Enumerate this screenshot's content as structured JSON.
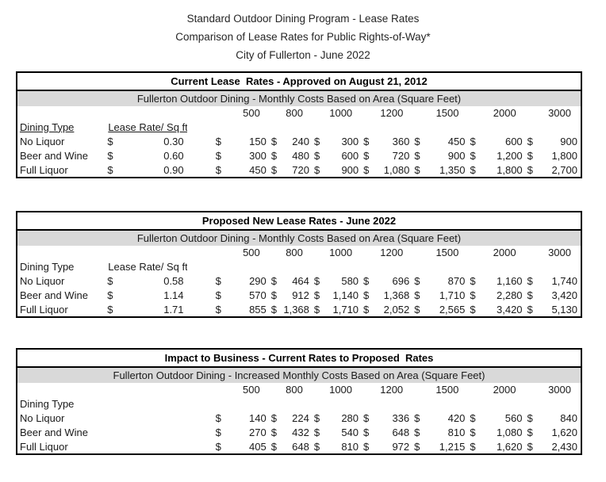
{
  "page_header": {
    "line1": "Standard Outdoor Dining Program - Lease Rates",
    "line2": "Comparison of Lease Rates for Public Rights-of-Way*",
    "line3": "City of Fullerton - June 2022"
  },
  "currency_symbol": "$",
  "columns": {
    "dining_type_label": "Dining Type",
    "rate_label": "Lease Rate/ Sq ft",
    "areas": [
      "500",
      "800",
      "1000",
      "1200",
      "1500",
      "2000",
      "3000"
    ]
  },
  "colors": {
    "subtitle_bg": "#d9d9d9",
    "border": "#000000",
    "text": "#1a1a1a"
  },
  "tables": [
    {
      "id": "current-rates",
      "title": "Current Lease  Rates - Approved on August 21, 2012",
      "subtitle": "Fullerton Outdoor Dining - Monthly Costs Based on Area (Square Feet)",
      "show_rate_column": true,
      "underline_headers": true,
      "rows": [
        {
          "label": "No Liquor",
          "rate": "0.30",
          "values": [
            "150",
            "240",
            "300",
            "360",
            "450",
            "600",
            "900"
          ]
        },
        {
          "label": "Beer and Wine",
          "rate": "0.60",
          "values": [
            "300",
            "480",
            "600",
            "720",
            "900",
            "1,200",
            "1,800"
          ]
        },
        {
          "label": "Full Liquor",
          "rate": "0.90",
          "values": [
            "450",
            "720",
            "900",
            "1,080",
            "1,350",
            "1,800",
            "2,700"
          ]
        }
      ]
    },
    {
      "id": "proposed-rates",
      "title": "Proposed New Lease Rates - June 2022",
      "subtitle": "Fullerton Outdoor Dining - Monthly Costs Based on Area (Square Feet)",
      "show_rate_column": true,
      "underline_headers": false,
      "rows": [
        {
          "label": "No Liquor",
          "rate": "0.58",
          "values": [
            "290",
            "464",
            "580",
            "696",
            "870",
            "1,160",
            "1,740"
          ]
        },
        {
          "label": "Beer and Wine",
          "rate": "1.14",
          "values": [
            "570",
            "912",
            "1,140",
            "1,368",
            "1,710",
            "2,280",
            "3,420"
          ]
        },
        {
          "label": "Full Liquor",
          "rate": "1.71",
          "values": [
            "855",
            "1,368",
            "1,710",
            "2,052",
            "2,565",
            "3,420",
            "5,130"
          ]
        }
      ]
    },
    {
      "id": "impact",
      "title": "Impact to Business - Current Rates to Proposed  Rates",
      "subtitle": "Fullerton Outdoor Dining - Increased Monthly Costs Based on Area (Square Feet)",
      "show_rate_column": false,
      "underline_headers": false,
      "rows": [
        {
          "label": "No Liquor",
          "rate": "",
          "values": [
            "140",
            "224",
            "280",
            "336",
            "420",
            "560",
            "840"
          ]
        },
        {
          "label": "Beer and Wine",
          "rate": "",
          "values": [
            "270",
            "432",
            "540",
            "648",
            "810",
            "1,080",
            "1,620"
          ]
        },
        {
          "label": "Full Liquor",
          "rate": "",
          "values": [
            "405",
            "648",
            "810",
            "972",
            "1,215",
            "1,620",
            "2,430"
          ]
        }
      ]
    }
  ]
}
